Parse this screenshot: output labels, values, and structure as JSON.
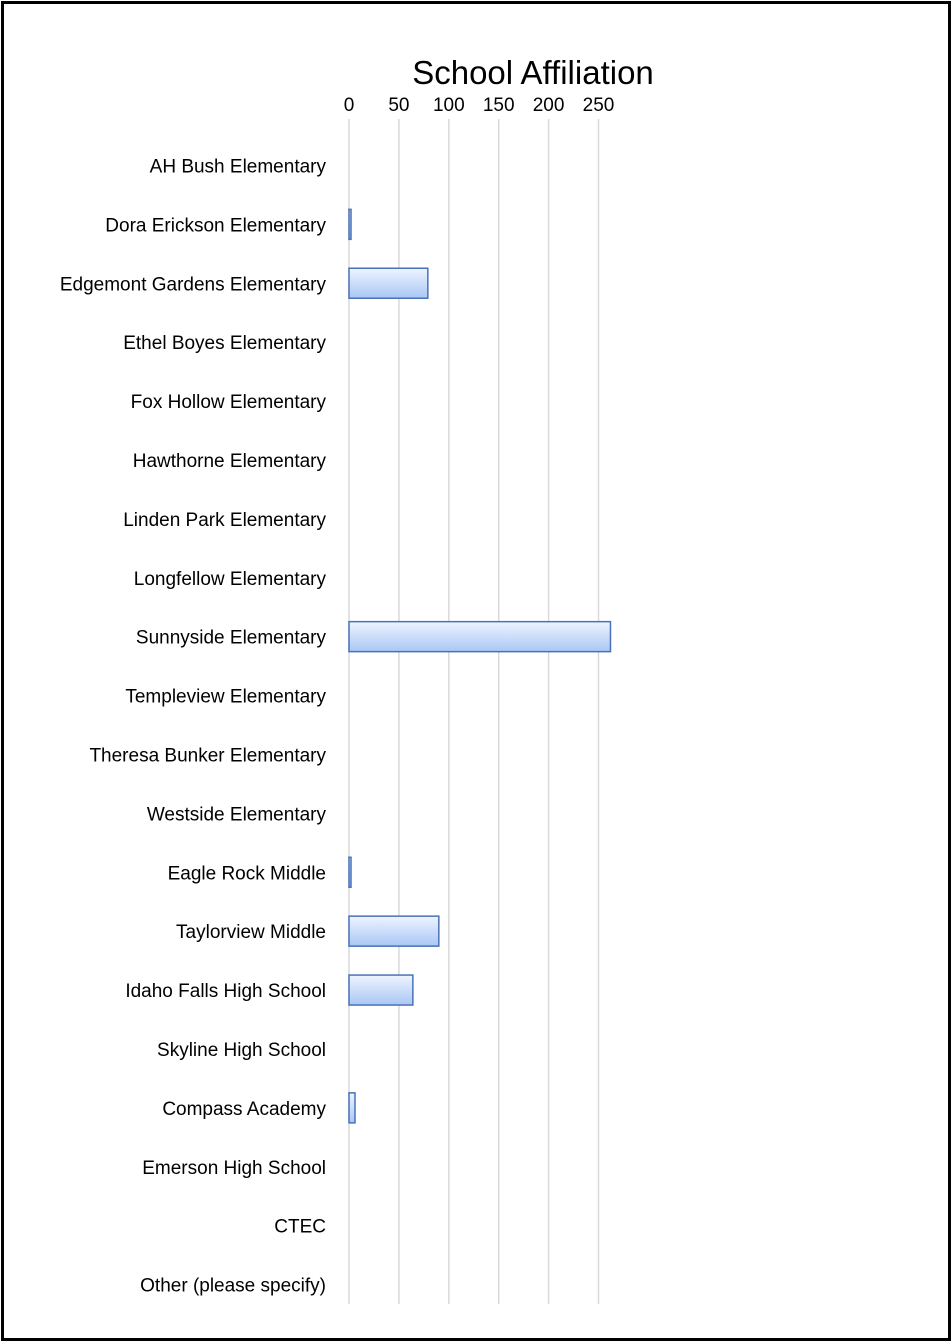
{
  "chart_data": {
    "type": "bar",
    "orientation": "horizontal",
    "title": "School Affiliation",
    "xlabel": "",
    "ylabel": "",
    "xlim": [
      0,
      270
    ],
    "ticks": [
      0,
      50,
      100,
      150,
      200,
      250
    ],
    "tick_labels": [
      "0",
      "50",
      "100",
      "150",
      "200",
      "250"
    ],
    "grid": true,
    "axis_position": "top",
    "categories": [
      "AH Bush Elementary",
      "Dora Erickson Elementary",
      "Edgemont Gardens Elementary",
      "Ethel Boyes Elementary",
      "Fox Hollow Elementary",
      "Hawthorne Elementary",
      "Linden Park Elementary",
      "Longfellow Elementary",
      "Sunnyside Elementary",
      "Templeview Elementary",
      "Theresa Bunker Elementary",
      "Westside Elementary",
      "Eagle Rock Middle",
      "Taylorview Middle",
      "Idaho Falls High School",
      "Skyline High School",
      "Compass Academy",
      "Emerson High School",
      "CTEC",
      "Other (please specify)"
    ],
    "values": [
      0,
      2,
      79,
      0,
      0,
      0,
      0,
      0,
      262,
      0,
      0,
      0,
      2,
      90,
      64,
      0,
      6,
      0,
      0,
      0
    ],
    "colors": {
      "bar_light": "#eef4ff",
      "bar_dark": "#a9c7f5",
      "bar_border": "#4a72b8",
      "grid": "#d9d9d9"
    }
  }
}
